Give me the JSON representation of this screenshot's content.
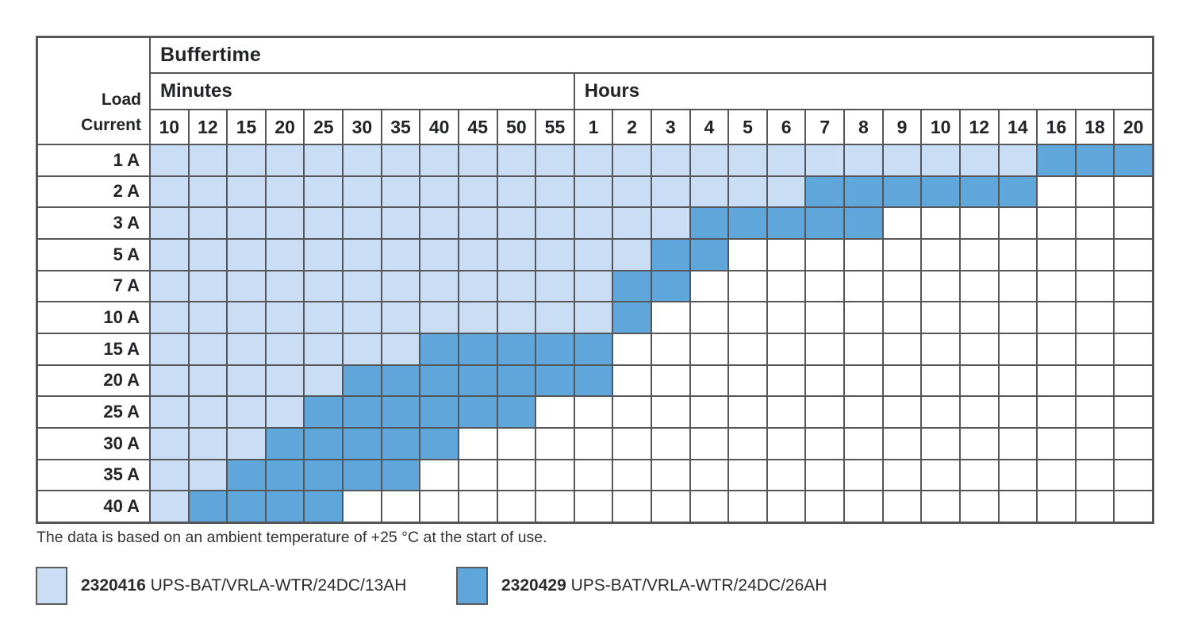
{
  "header": {
    "buffertime": "Buffertime",
    "minutes": "Minutes",
    "hours": "Hours",
    "load_current_lines": [
      "Load",
      "Current"
    ]
  },
  "chart_data": {
    "type": "heatmap",
    "title": "Buffertime",
    "row_axis_label": "Load Current",
    "column_groups": [
      {
        "label": "Minutes",
        "columns": [
          "10",
          "12",
          "15",
          "20",
          "25",
          "30",
          "35",
          "40",
          "45",
          "50",
          "55"
        ]
      },
      {
        "label": "Hours",
        "columns": [
          "1",
          "2",
          "3",
          "4",
          "5",
          "6",
          "7",
          "8",
          "9",
          "10",
          "12",
          "14",
          "16",
          "18",
          "20"
        ]
      }
    ],
    "cell_key": {
      "L": "2320416 UPS-BAT/VRLA-WTR/24DC/13AH",
      "D": "2320429 UPS-BAT/VRLA-WTR/24DC/26AH",
      ".": "empty"
    },
    "rows": [
      {
        "label": "1 A",
        "cells": "LLLLLLLLLLLLLLLLLLLLLLLDDD"
      },
      {
        "label": "2 A",
        "cells": "LLLLLLLLLLLLLLLLLDDDDDD..."
      },
      {
        "label": "3 A",
        "cells": "LLLLLLLLLLLLLLDDDDD......."
      },
      {
        "label": "5 A",
        "cells": "LLLLLLLLLLLLLDD..........."
      },
      {
        "label": "7 A",
        "cells": "LLLLLLLLLLLLDD............"
      },
      {
        "label": "10 A",
        "cells": "LLLLLLLLLLLLD............."
      },
      {
        "label": "15 A",
        "cells": "LLLLLLLDDDDD.............."
      },
      {
        "label": "20 A",
        "cells": "LLLLLDDDDDDD.............."
      },
      {
        "label": "25 A",
        "cells": "LLLLDDDDDD................"
      },
      {
        "label": "30 A",
        "cells": "LLLDDDDD.................."
      },
      {
        "label": "35 A",
        "cells": "LLDDDDD..................."
      },
      {
        "label": "40 A",
        "cells": "LDDDD....................."
      }
    ],
    "colors": {
      "light": "#c9def4",
      "dark": "#5fa6db",
      "grid": "#55565a"
    },
    "footnote": "The data is based on an ambient temperature of +25 °C at the start of use.",
    "legend": [
      {
        "code": "2320416",
        "label": "UPS-BAT/VRLA-WTR/24DC/13AH",
        "swatch": "light"
      },
      {
        "code": "2320429",
        "label": "UPS-BAT/VRLA-WTR/24DC/26AH",
        "swatch": "dark"
      }
    ]
  }
}
